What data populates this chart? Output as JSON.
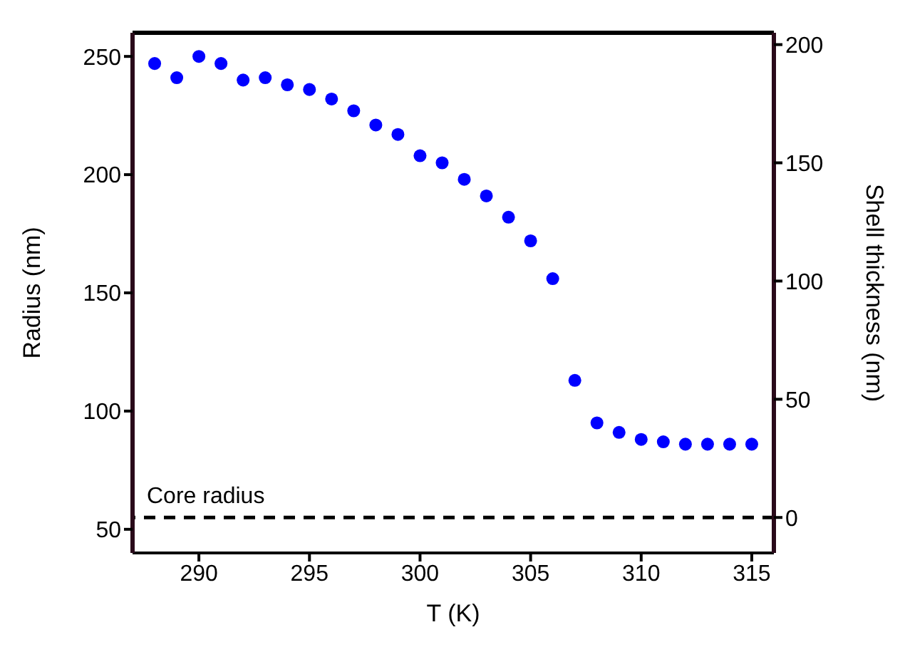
{
  "chart_data": {
    "type": "scatter",
    "xlabel": "T (K)",
    "ylabel": "Radius (nm)",
    "y2label": "Shell thickness (nm)",
    "x": [
      288,
      289,
      290,
      291,
      292,
      293,
      294,
      295,
      296,
      297,
      298,
      299,
      300,
      301,
      302,
      303,
      304,
      305,
      306,
      307,
      308,
      309,
      310,
      311,
      312,
      313,
      314,
      315
    ],
    "series": [
      {
        "color": "#0000ff",
        "values": [
          247,
          241,
          250,
          247,
          240,
          241,
          238,
          236,
          232,
          227,
          221,
          217,
          208,
          205,
          198,
          191,
          182,
          172,
          156,
          113,
          95,
          91,
          88,
          87,
          86,
          86,
          86,
          86
        ]
      }
    ],
    "xlim": [
      287,
      316
    ],
    "xticks": [
      290,
      295,
      300,
      305,
      310,
      315
    ],
    "ylim": [
      40,
      260
    ],
    "yticks": [
      50,
      100,
      150,
      200,
      250
    ],
    "y2lim": [
      -15,
      205
    ],
    "y2ticks": [
      0,
      50,
      100,
      150,
      200
    ],
    "ref_lines": [
      {
        "axis": "y2",
        "value": 0,
        "label": "Core radius",
        "color": "#000000",
        "line_style": "dashed"
      }
    ],
    "marker": "circle"
  }
}
